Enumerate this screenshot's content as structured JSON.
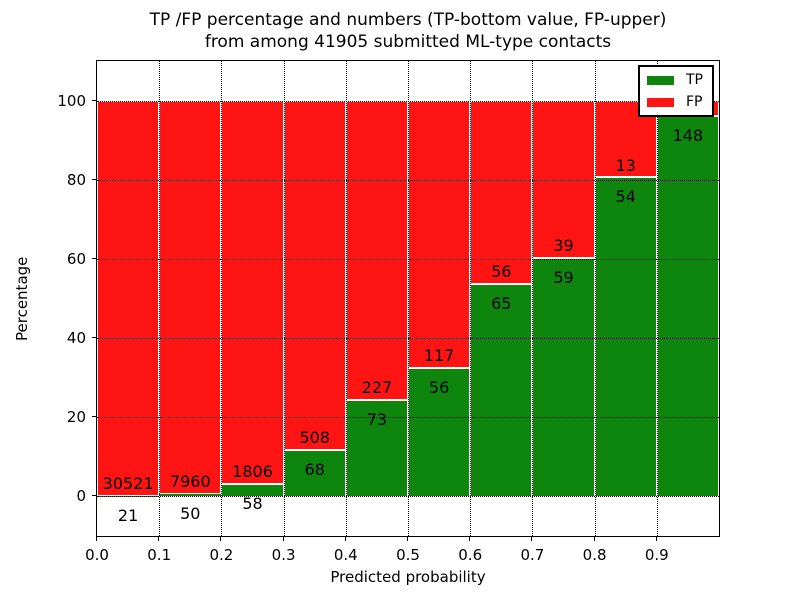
{
  "chart_data": {
    "type": "bar",
    "variant": "stacked-percentage-histogram",
    "title_line1": "TP /FP percentage and numbers (TP-bottom value, FP-upper)",
    "title_line2": "from among 41905 submitted ML-type contacts",
    "xlabel": "Predicted probability",
    "ylabel": "Percentage",
    "xlim": [
      0.0,
      1.0
    ],
    "ylim": [
      -10,
      110
    ],
    "grid": "dotted black, on",
    "legend_position": "upper right",
    "x_tick_labels": [
      "0.0",
      "0.1",
      "0.2",
      "0.3",
      "0.4",
      "0.5",
      "0.6",
      "0.7",
      "0.8",
      "0.9"
    ],
    "y_tick_values": [
      0,
      20,
      40,
      60,
      80,
      100
    ],
    "categories": [
      "0.0-0.1",
      "0.1-0.2",
      "0.2-0.3",
      "0.3-0.4",
      "0.4-0.5",
      "0.5-0.6",
      "0.6-0.7",
      "0.7-0.8",
      "0.8-0.9",
      "0.9-1.0"
    ],
    "series": [
      {
        "name": "TP",
        "color": "#0e860e",
        "counts_labels": [
          "21",
          "50",
          "58",
          "68",
          "73",
          "56",
          "65",
          "59",
          "54",
          "148"
        ]
      },
      {
        "name": "FP",
        "color": "#ff1414",
        "counts_labels": [
          "30521",
          "7960",
          "1806",
          "508",
          "227",
          "117",
          "56",
          "39",
          "13",
          ""
        ]
      }
    ],
    "bars": [
      {
        "x0": 0.0,
        "x1": 0.1,
        "tp_label": "21",
        "fp_label": "30521",
        "tp_pct": 0.07
      },
      {
        "x0": 0.1,
        "x1": 0.2,
        "tp_label": "50",
        "fp_label": "7960",
        "tp_pct": 0.62
      },
      {
        "x0": 0.2,
        "x1": 0.3,
        "tp_label": "58",
        "fp_label": "1806",
        "tp_pct": 3.1
      },
      {
        "x0": 0.3,
        "x1": 0.4,
        "tp_label": "68",
        "fp_label": "508",
        "tp_pct": 11.8
      },
      {
        "x0": 0.4,
        "x1": 0.5,
        "tp_label": "73",
        "fp_label": "227",
        "tp_pct": 24.3
      },
      {
        "x0": 0.5,
        "x1": 0.6,
        "tp_label": "56",
        "fp_label": "117",
        "tp_pct": 32.4
      },
      {
        "x0": 0.6,
        "x1": 0.7,
        "tp_label": "65",
        "fp_label": "56",
        "tp_pct": 53.7
      },
      {
        "x0": 0.7,
        "x1": 0.8,
        "tp_label": "59",
        "fp_label": "39",
        "tp_pct": 60.2
      },
      {
        "x0": 0.8,
        "x1": 0.9,
        "tp_label": "54",
        "fp_label": "13",
        "tp_pct": 80.6
      },
      {
        "x0": 0.9,
        "x1": 1.0,
        "tp_label": "148",
        "fp_label": "",
        "tp_pct": 96.1
      }
    ],
    "colors": {
      "tp": "#0e860e",
      "fp": "#ff1414",
      "bar_edge": "#ffffff",
      "grid": "#000000",
      "background": "#ffffff"
    },
    "legend": [
      {
        "label": "TP",
        "color": "#0e860e"
      },
      {
        "label": "FP",
        "color": "#ff1414"
      }
    ]
  }
}
